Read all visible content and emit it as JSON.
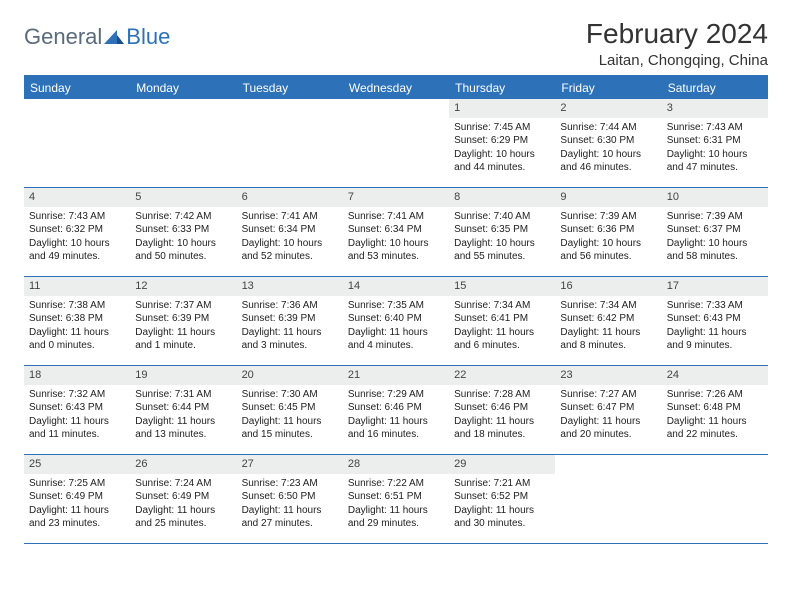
{
  "brand": {
    "general": "General",
    "blue": "Blue"
  },
  "title": "February 2024",
  "location": "Laitan, Chongqing, China",
  "colors": {
    "accent": "#2d71b8",
    "header_bg": "#2d71b8",
    "header_text": "#ffffff",
    "daynum_bg": "#eceded",
    "text": "#222222",
    "logo_gray": "#5a6b7b"
  },
  "weekdays": [
    "Sunday",
    "Monday",
    "Tuesday",
    "Wednesday",
    "Thursday",
    "Friday",
    "Saturday"
  ],
  "weeks": [
    [
      null,
      null,
      null,
      null,
      {
        "n": "1",
        "sunrise": "Sunrise: 7:45 AM",
        "sunset": "Sunset: 6:29 PM",
        "day1": "Daylight: 10 hours",
        "day2": "and 44 minutes."
      },
      {
        "n": "2",
        "sunrise": "Sunrise: 7:44 AM",
        "sunset": "Sunset: 6:30 PM",
        "day1": "Daylight: 10 hours",
        "day2": "and 46 minutes."
      },
      {
        "n": "3",
        "sunrise": "Sunrise: 7:43 AM",
        "sunset": "Sunset: 6:31 PM",
        "day1": "Daylight: 10 hours",
        "day2": "and 47 minutes."
      }
    ],
    [
      {
        "n": "4",
        "sunrise": "Sunrise: 7:43 AM",
        "sunset": "Sunset: 6:32 PM",
        "day1": "Daylight: 10 hours",
        "day2": "and 49 minutes."
      },
      {
        "n": "5",
        "sunrise": "Sunrise: 7:42 AM",
        "sunset": "Sunset: 6:33 PM",
        "day1": "Daylight: 10 hours",
        "day2": "and 50 minutes."
      },
      {
        "n": "6",
        "sunrise": "Sunrise: 7:41 AM",
        "sunset": "Sunset: 6:34 PM",
        "day1": "Daylight: 10 hours",
        "day2": "and 52 minutes."
      },
      {
        "n": "7",
        "sunrise": "Sunrise: 7:41 AM",
        "sunset": "Sunset: 6:34 PM",
        "day1": "Daylight: 10 hours",
        "day2": "and 53 minutes."
      },
      {
        "n": "8",
        "sunrise": "Sunrise: 7:40 AM",
        "sunset": "Sunset: 6:35 PM",
        "day1": "Daylight: 10 hours",
        "day2": "and 55 minutes."
      },
      {
        "n": "9",
        "sunrise": "Sunrise: 7:39 AM",
        "sunset": "Sunset: 6:36 PM",
        "day1": "Daylight: 10 hours",
        "day2": "and 56 minutes."
      },
      {
        "n": "10",
        "sunrise": "Sunrise: 7:39 AM",
        "sunset": "Sunset: 6:37 PM",
        "day1": "Daylight: 10 hours",
        "day2": "and 58 minutes."
      }
    ],
    [
      {
        "n": "11",
        "sunrise": "Sunrise: 7:38 AM",
        "sunset": "Sunset: 6:38 PM",
        "day1": "Daylight: 11 hours",
        "day2": "and 0 minutes."
      },
      {
        "n": "12",
        "sunrise": "Sunrise: 7:37 AM",
        "sunset": "Sunset: 6:39 PM",
        "day1": "Daylight: 11 hours",
        "day2": "and 1 minute."
      },
      {
        "n": "13",
        "sunrise": "Sunrise: 7:36 AM",
        "sunset": "Sunset: 6:39 PM",
        "day1": "Daylight: 11 hours",
        "day2": "and 3 minutes."
      },
      {
        "n": "14",
        "sunrise": "Sunrise: 7:35 AM",
        "sunset": "Sunset: 6:40 PM",
        "day1": "Daylight: 11 hours",
        "day2": "and 4 minutes."
      },
      {
        "n": "15",
        "sunrise": "Sunrise: 7:34 AM",
        "sunset": "Sunset: 6:41 PM",
        "day1": "Daylight: 11 hours",
        "day2": "and 6 minutes."
      },
      {
        "n": "16",
        "sunrise": "Sunrise: 7:34 AM",
        "sunset": "Sunset: 6:42 PM",
        "day1": "Daylight: 11 hours",
        "day2": "and 8 minutes."
      },
      {
        "n": "17",
        "sunrise": "Sunrise: 7:33 AM",
        "sunset": "Sunset: 6:43 PM",
        "day1": "Daylight: 11 hours",
        "day2": "and 9 minutes."
      }
    ],
    [
      {
        "n": "18",
        "sunrise": "Sunrise: 7:32 AM",
        "sunset": "Sunset: 6:43 PM",
        "day1": "Daylight: 11 hours",
        "day2": "and 11 minutes."
      },
      {
        "n": "19",
        "sunrise": "Sunrise: 7:31 AM",
        "sunset": "Sunset: 6:44 PM",
        "day1": "Daylight: 11 hours",
        "day2": "and 13 minutes."
      },
      {
        "n": "20",
        "sunrise": "Sunrise: 7:30 AM",
        "sunset": "Sunset: 6:45 PM",
        "day1": "Daylight: 11 hours",
        "day2": "and 15 minutes."
      },
      {
        "n": "21",
        "sunrise": "Sunrise: 7:29 AM",
        "sunset": "Sunset: 6:46 PM",
        "day1": "Daylight: 11 hours",
        "day2": "and 16 minutes."
      },
      {
        "n": "22",
        "sunrise": "Sunrise: 7:28 AM",
        "sunset": "Sunset: 6:46 PM",
        "day1": "Daylight: 11 hours",
        "day2": "and 18 minutes."
      },
      {
        "n": "23",
        "sunrise": "Sunrise: 7:27 AM",
        "sunset": "Sunset: 6:47 PM",
        "day1": "Daylight: 11 hours",
        "day2": "and 20 minutes."
      },
      {
        "n": "24",
        "sunrise": "Sunrise: 7:26 AM",
        "sunset": "Sunset: 6:48 PM",
        "day1": "Daylight: 11 hours",
        "day2": "and 22 minutes."
      }
    ],
    [
      {
        "n": "25",
        "sunrise": "Sunrise: 7:25 AM",
        "sunset": "Sunset: 6:49 PM",
        "day1": "Daylight: 11 hours",
        "day2": "and 23 minutes."
      },
      {
        "n": "26",
        "sunrise": "Sunrise: 7:24 AM",
        "sunset": "Sunset: 6:49 PM",
        "day1": "Daylight: 11 hours",
        "day2": "and 25 minutes."
      },
      {
        "n": "27",
        "sunrise": "Sunrise: 7:23 AM",
        "sunset": "Sunset: 6:50 PM",
        "day1": "Daylight: 11 hours",
        "day2": "and 27 minutes."
      },
      {
        "n": "28",
        "sunrise": "Sunrise: 7:22 AM",
        "sunset": "Sunset: 6:51 PM",
        "day1": "Daylight: 11 hours",
        "day2": "and 29 minutes."
      },
      {
        "n": "29",
        "sunrise": "Sunrise: 7:21 AM",
        "sunset": "Sunset: 6:52 PM",
        "day1": "Daylight: 11 hours",
        "day2": "and 30 minutes."
      },
      null,
      null
    ]
  ]
}
